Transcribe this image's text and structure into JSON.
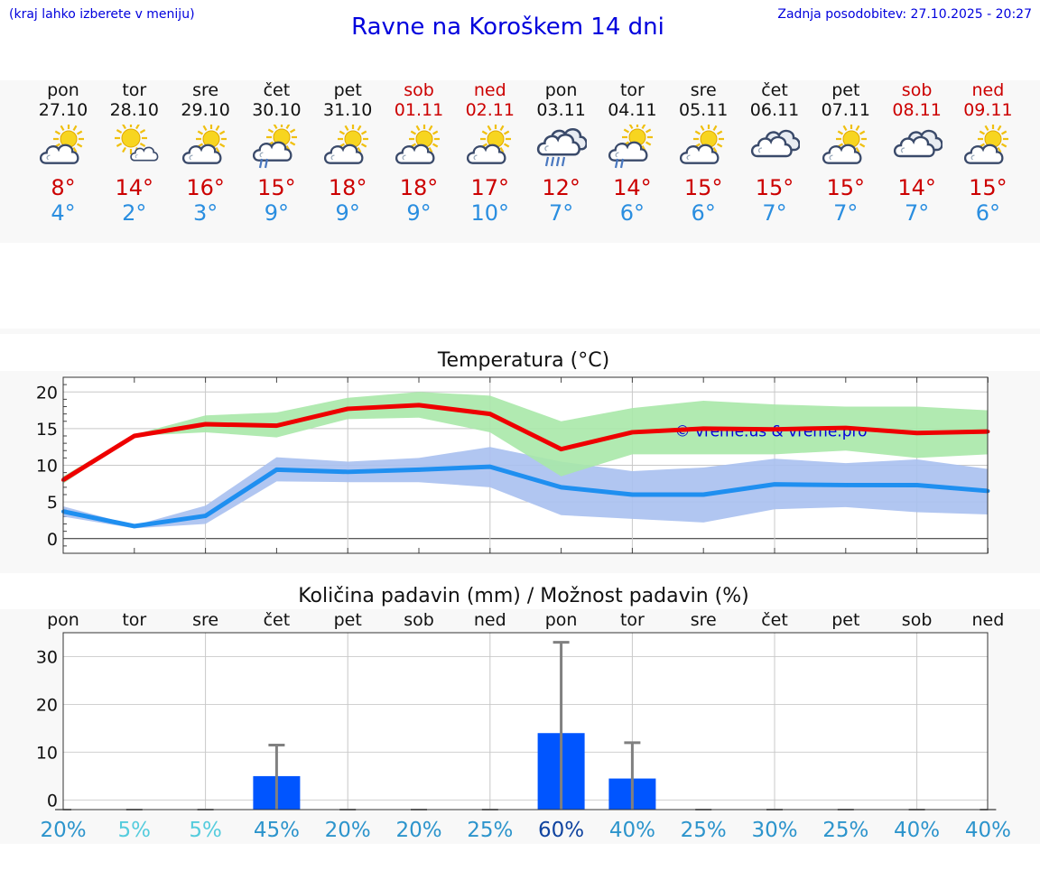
{
  "header": {
    "hint": "(kraj lahko izberete v meniju)",
    "title": "Ravne na Koroškem 14 dni",
    "updated": "Zadnja posodobitev: 27.10.2025 - 20:27"
  },
  "days": [
    {
      "name": "pon",
      "date": "27.10",
      "max": "8°",
      "min": "4°",
      "weekend": false,
      "icon": "partly-cloudy-icon"
    },
    {
      "name": "tor",
      "date": "28.10",
      "max": "14°",
      "min": "2°",
      "weekend": false,
      "icon": "sunny-small-cloud-icon"
    },
    {
      "name": "sre",
      "date": "29.10",
      "max": "16°",
      "min": "3°",
      "weekend": false,
      "icon": "partly-cloudy-icon"
    },
    {
      "name": "čet",
      "date": "30.10",
      "max": "15°",
      "min": "9°",
      "weekend": false,
      "icon": "sun-cloud-light-rain-icon"
    },
    {
      "name": "pet",
      "date": "31.10",
      "max": "18°",
      "min": "9°",
      "weekend": false,
      "icon": "partly-cloudy-icon"
    },
    {
      "name": "sob",
      "date": "01.11",
      "max": "18°",
      "min": "9°",
      "weekend": true,
      "icon": "partly-cloudy-icon"
    },
    {
      "name": "ned",
      "date": "02.11",
      "max": "17°",
      "min": "10°",
      "weekend": true,
      "icon": "partly-cloudy-icon"
    },
    {
      "name": "pon",
      "date": "03.11",
      "max": "12°",
      "min": "7°",
      "weekend": false,
      "icon": "cloudy-rain-icon"
    },
    {
      "name": "tor",
      "date": "04.11",
      "max": "14°",
      "min": "6°",
      "weekend": false,
      "icon": "sun-cloud-light-rain-icon"
    },
    {
      "name": "sre",
      "date": "05.11",
      "max": "15°",
      "min": "6°",
      "weekend": false,
      "icon": "partly-cloudy-icon"
    },
    {
      "name": "čet",
      "date": "06.11",
      "max": "15°",
      "min": "7°",
      "weekend": false,
      "icon": "cloudy-icon"
    },
    {
      "name": "pet",
      "date": "07.11",
      "max": "15°",
      "min": "7°",
      "weekend": false,
      "icon": "partly-cloudy-icon"
    },
    {
      "name": "sob",
      "date": "08.11",
      "max": "14°",
      "min": "7°",
      "weekend": true,
      "icon": "cloudy-icon"
    },
    {
      "name": "ned",
      "date": "09.11",
      "max": "15°",
      "min": "6°",
      "weekend": true,
      "icon": "partly-cloudy-icon"
    }
  ],
  "colors": {
    "max_line": "#ee0000",
    "min_line": "#1f8ff0",
    "max_band": "#a8e8a8",
    "min_band": "#a8c0f0",
    "bar": "#0055ff",
    "whisker": "#808080",
    "watermark": "#0000dd",
    "pct_light": "#55ccdd",
    "pct_mid": "#2c94cc",
    "pct_dark": "#1044a0"
  },
  "chart_data": [
    {
      "type": "line",
      "title": "Temperatura (°C)",
      "watermark": "© vreme.us & vreme.pro",
      "x": [
        0,
        1,
        2,
        3,
        4,
        5,
        6,
        7,
        8,
        9,
        10,
        11,
        12,
        13
      ],
      "ylim": [
        -2,
        22
      ],
      "yticks": [
        0,
        5,
        10,
        15,
        20
      ],
      "grid": true,
      "series": [
        {
          "role": "max",
          "values": [
            8,
            14,
            15.6,
            15.4,
            17.7,
            18.2,
            17,
            12.2,
            14.5,
            15,
            14.9,
            15.1,
            14.4,
            14.6
          ],
          "band_low": [
            7.5,
            14,
            14.5,
            13.8,
            16.3,
            16.5,
            14.5,
            8.5,
            11.5,
            11.5,
            11.5,
            12,
            11,
            11.5
          ],
          "band_high": [
            8.5,
            14.2,
            16.8,
            17.2,
            19.2,
            20,
            19.5,
            16,
            17.8,
            18.8,
            18.3,
            18,
            18,
            17.5
          ]
        },
        {
          "role": "min",
          "values": [
            3.7,
            1.7,
            3.1,
            9.4,
            9.1,
            9.4,
            9.8,
            7,
            6,
            6,
            7.4,
            7.3,
            7.3,
            6.5
          ],
          "band_low": [
            3,
            1.4,
            2,
            7.8,
            7.7,
            7.7,
            7,
            3.2,
            2.7,
            2.2,
            4,
            4.3,
            3.6,
            3.3
          ],
          "band_high": [
            4.4,
            1.8,
            4.5,
            11.1,
            10.5,
            11,
            12.5,
            10.5,
            9.2,
            9.7,
            10.9,
            10.3,
            10.8,
            9.5
          ]
        }
      ]
    },
    {
      "type": "bar",
      "title": "Količina padavin (mm) / Možnost padavin (%)",
      "categories": [
        "pon",
        "tor",
        "sre",
        "čet",
        "pet",
        "sob",
        "ned",
        "pon",
        "tor",
        "sre",
        "čet",
        "pet",
        "sob",
        "ned"
      ],
      "values": [
        0,
        0,
        0,
        5,
        0,
        0,
        0,
        14,
        4.5,
        0,
        0,
        0,
        0,
        0
      ],
      "error_high": [
        0,
        0,
        0,
        11.5,
        0,
        0,
        0,
        33,
        12,
        0,
        0,
        0,
        0,
        0
      ],
      "probability": [
        "20%",
        "5%",
        "5%",
        "45%",
        "20%",
        "20%",
        "25%",
        "60%",
        "40%",
        "25%",
        "30%",
        "25%",
        "40%",
        "40%"
      ],
      "probability_shade": [
        "mid",
        "light",
        "light",
        "mid",
        "mid",
        "mid",
        "mid",
        "dark",
        "mid",
        "mid",
        "mid",
        "mid",
        "mid",
        "mid"
      ],
      "ylim": [
        -2,
        35
      ],
      "yticks": [
        0,
        10,
        20,
        30
      ],
      "grid": true
    }
  ]
}
